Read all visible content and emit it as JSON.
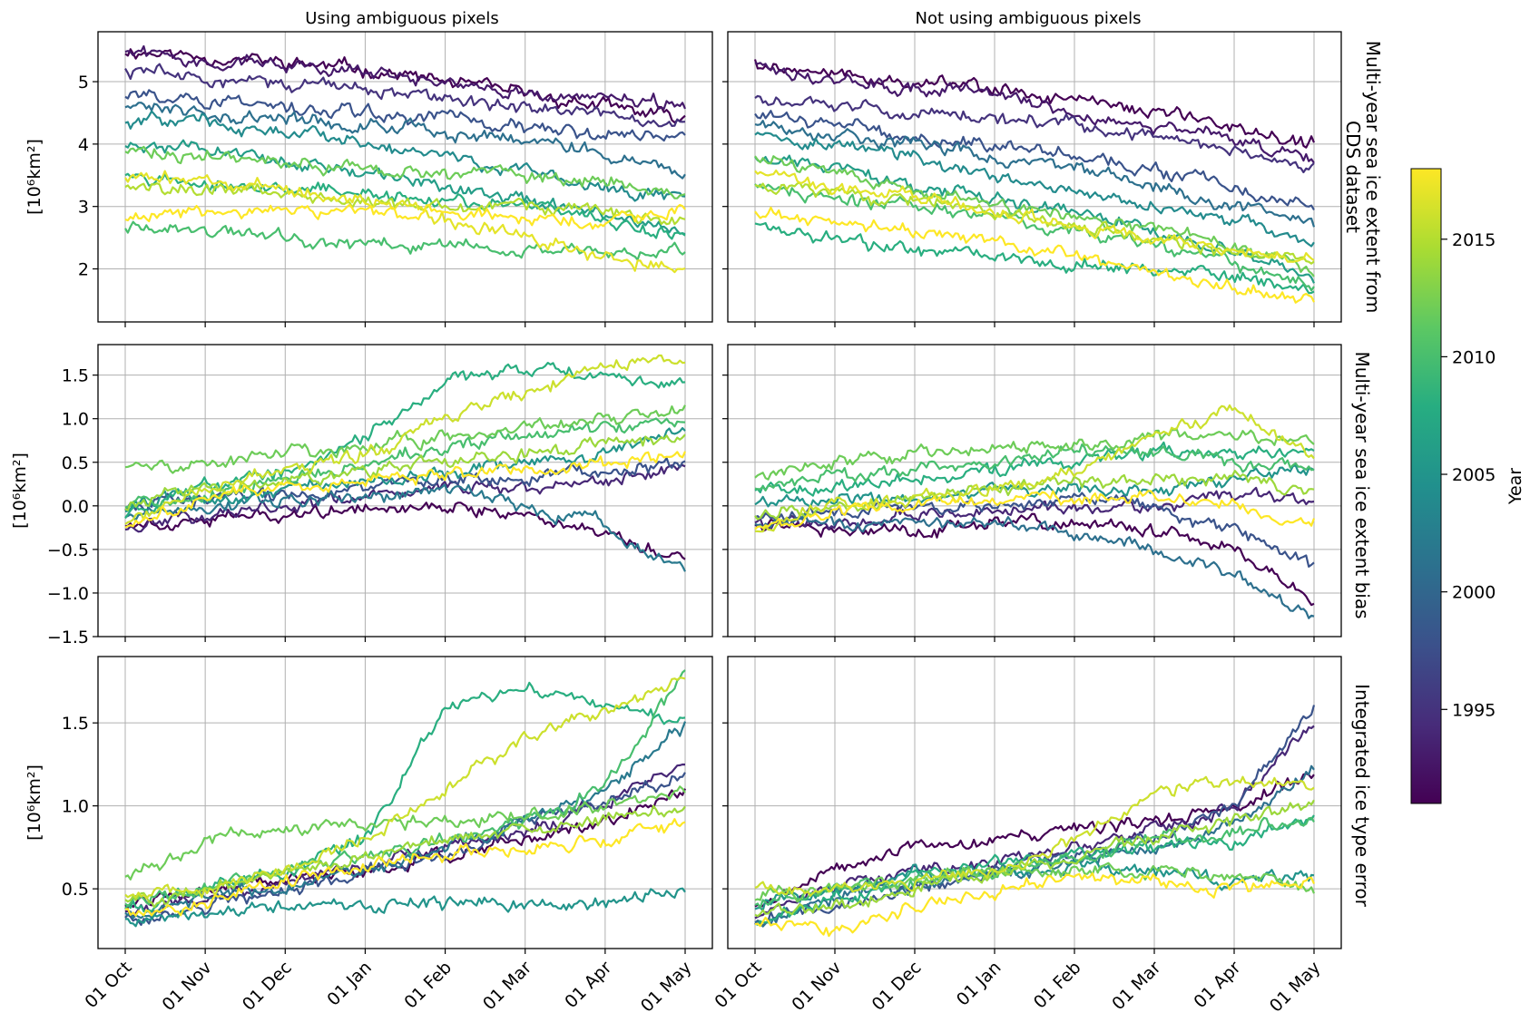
{
  "figure": {
    "column_titles": [
      "Using ambiguous pixels",
      "Not using ambiguous pixels"
    ],
    "row_titles": [
      "Multi-year sea ice extent from\nCDS dataset",
      "Multi-year sea ice extent bias",
      "Integrated ice type error"
    ],
    "ylabel": "[10⁶km²]",
    "colorbar": {
      "label": "Year",
      "range": [
        1991,
        2018
      ],
      "ticks": [
        "1995",
        "2000",
        "2005",
        "2010",
        "2015"
      ],
      "colormap": "viridis",
      "colors": [
        "#440154",
        "#472c7a",
        "#3b518b",
        "#2c718e",
        "#21908d",
        "#27ad81",
        "#5cc863",
        "#aadc32",
        "#fde725"
      ]
    },
    "x_tick_labels": [
      "01 Oct",
      "01 Nov",
      "01 Dec",
      "01 Jan",
      "01 Feb",
      "01 Mar",
      "01 Apr",
      "01 May"
    ],
    "grid": true
  },
  "chart_data": [
    {
      "type": "line",
      "title": "Using ambiguous pixels",
      "row": "Multi-year sea ice extent from CDS dataset",
      "x": [
        "01 Oct",
        "01 Nov",
        "01 Dec",
        "01 Jan",
        "01 Feb",
        "01 Mar",
        "01 Apr",
        "01 May"
      ],
      "ylim": [
        1.15,
        5.8
      ],
      "yticks": [
        2,
        3,
        4,
        5
      ],
      "ytick_labels": [
        "2",
        "3",
        "4",
        "5"
      ],
      "series_years": "1991-2018 (one line per year)",
      "series": [
        {
          "year": 1991,
          "values": [
            5.5,
            5.4,
            5.3,
            5.2,
            5.0,
            4.8,
            4.6,
            4.4
          ]
        },
        {
          "year": 1993,
          "values": [
            5.5,
            5.35,
            5.3,
            5.15,
            5.0,
            4.8,
            4.7,
            4.6
          ]
        },
        {
          "year": 1995,
          "values": [
            5.2,
            5.1,
            5.0,
            4.9,
            4.7,
            4.6,
            4.45,
            4.3
          ]
        },
        {
          "year": 1998,
          "values": [
            4.8,
            4.7,
            4.6,
            4.5,
            4.4,
            4.3,
            4.2,
            4.1
          ]
        },
        {
          "year": 2001,
          "values": [
            4.6,
            4.5,
            4.4,
            4.3,
            4.2,
            4.1,
            3.9,
            3.5
          ]
        },
        {
          "year": 2004,
          "values": [
            4.4,
            4.35,
            4.2,
            4.0,
            3.8,
            3.6,
            3.3,
            3.1
          ]
        },
        {
          "year": 2006,
          "values": [
            4.0,
            3.9,
            3.7,
            3.5,
            3.3,
            3.1,
            2.9,
            2.6
          ]
        },
        {
          "year": 2008,
          "values": [
            3.5,
            3.4,
            3.3,
            3.2,
            3.1,
            3.0,
            2.8,
            2.5
          ]
        },
        {
          "year": 2010,
          "values": [
            2.7,
            2.6,
            2.5,
            2.4,
            2.4,
            2.3,
            2.3,
            2.3
          ]
        },
        {
          "year": 2012,
          "values": [
            3.9,
            3.8,
            3.7,
            3.6,
            3.5,
            3.5,
            3.4,
            3.3
          ]
        },
        {
          "year": 2015,
          "values": [
            3.3,
            3.3,
            3.2,
            3.1,
            3.0,
            3.0,
            2.9,
            2.8
          ]
        },
        {
          "year": 2017,
          "values": [
            3.5,
            3.4,
            3.3,
            3.1,
            2.8,
            2.5,
            2.2,
            2.0
          ]
        },
        {
          "year": 2018,
          "values": [
            2.8,
            2.9,
            2.9,
            2.9,
            2.9,
            2.8,
            2.8,
            2.9
          ]
        }
      ]
    },
    {
      "type": "line",
      "title": "Not using ambiguous pixels",
      "row": "Multi-year sea ice extent from CDS dataset",
      "x": [
        "01 Oct",
        "01 Nov",
        "01 Dec",
        "01 Jan",
        "01 Feb",
        "01 Mar",
        "01 Apr",
        "01 May"
      ],
      "ylim": [
        1.15,
        5.8
      ],
      "yticks": [
        2,
        3,
        4,
        5
      ],
      "ytick_labels": [
        "2",
        "3",
        "4",
        "5"
      ],
      "series_years": "1991-2018 (one line per year)",
      "series": [
        {
          "year": 1991,
          "values": [
            5.3,
            5.1,
            5.0,
            4.9,
            4.7,
            4.5,
            4.3,
            4.0
          ]
        },
        {
          "year": 1993,
          "values": [
            5.3,
            5.0,
            4.9,
            4.8,
            4.5,
            4.3,
            4.1,
            3.7
          ]
        },
        {
          "year": 1995,
          "values": [
            4.7,
            4.6,
            4.5,
            4.4,
            4.3,
            4.1,
            3.9,
            3.6
          ]
        },
        {
          "year": 1998,
          "values": [
            4.5,
            4.3,
            4.1,
            4.0,
            3.8,
            3.6,
            3.3,
            3.0
          ]
        },
        {
          "year": 2001,
          "values": [
            4.3,
            4.2,
            4.0,
            3.8,
            3.6,
            3.3,
            3.0,
            2.7
          ]
        },
        {
          "year": 2004,
          "values": [
            4.1,
            4.0,
            3.8,
            3.5,
            3.2,
            3.0,
            2.8,
            2.4
          ]
        },
        {
          "year": 2006,
          "values": [
            3.8,
            3.6,
            3.3,
            3.1,
            2.9,
            2.6,
            2.3,
            1.8
          ]
        },
        {
          "year": 2008,
          "values": [
            2.7,
            2.5,
            2.3,
            2.2,
            2.1,
            2.0,
            1.9,
            1.6
          ]
        },
        {
          "year": 2010,
          "values": [
            3.3,
            3.1,
            3.0,
            2.8,
            2.6,
            2.4,
            2.1,
            1.7
          ]
        },
        {
          "year": 2012,
          "values": [
            3.8,
            3.5,
            3.2,
            3.0,
            2.8,
            2.6,
            2.4,
            2.0
          ]
        },
        {
          "year": 2015,
          "values": [
            3.3,
            3.2,
            3.1,
            2.9,
            2.7,
            2.5,
            2.3,
            2.1
          ]
        },
        {
          "year": 2017,
          "values": [
            3.5,
            3.3,
            3.1,
            2.9,
            2.7,
            2.5,
            2.3,
            2.1
          ]
        },
        {
          "year": 2018,
          "values": [
            2.9,
            2.7,
            2.6,
            2.4,
            2.2,
            1.9,
            1.7,
            1.5
          ]
        }
      ]
    },
    {
      "type": "line",
      "title": "Using ambiguous pixels",
      "row": "Multi-year sea ice extent bias",
      "x": [
        "01 Oct",
        "01 Nov",
        "01 Dec",
        "01 Jan",
        "01 Feb",
        "01 Mar",
        "01 Apr",
        "01 May"
      ],
      "ylim": [
        -1.5,
        1.85
      ],
      "yticks": [
        -1.5,
        -1.0,
        -0.5,
        0.0,
        0.5,
        1.0,
        1.5
      ],
      "ytick_labels": [
        "−1.5",
        "−1.0",
        "−0.5",
        "0.0",
        "0.5",
        "1.0",
        "1.5"
      ],
      "series_years": "1991-2018 (one line per year)",
      "series": [
        {
          "year": 1991,
          "values": [
            -0.2,
            -0.15,
            -0.1,
            0.0,
            0.0,
            -0.1,
            -0.3,
            -0.6
          ]
        },
        {
          "year": 1994,
          "values": [
            -0.2,
            -0.1,
            0.0,
            0.1,
            0.2,
            0.2,
            0.3,
            0.4
          ]
        },
        {
          "year": 1998,
          "values": [
            0.0,
            0.1,
            0.1,
            0.2,
            0.3,
            0.3,
            0.4,
            0.5
          ]
        },
        {
          "year": 2002,
          "values": [
            -0.1,
            0.0,
            0.1,
            0.1,
            0.2,
            0.0,
            -0.2,
            -0.8
          ]
        },
        {
          "year": 2005,
          "values": [
            0.0,
            0.1,
            0.2,
            0.3,
            0.4,
            0.5,
            0.6,
            0.9
          ]
        },
        {
          "year": 2008,
          "values": [
            -0.1,
            0.2,
            0.4,
            0.8,
            1.4,
            1.6,
            1.5,
            1.4
          ]
        },
        {
          "year": 2010,
          "values": [
            0.0,
            0.1,
            0.3,
            0.5,
            0.7,
            0.8,
            0.9,
            1.0
          ]
        },
        {
          "year": 2012,
          "values": [
            0.5,
            0.5,
            0.6,
            0.7,
            0.8,
            0.9,
            1.0,
            1.1
          ]
        },
        {
          "year": 2014,
          "values": [
            0.0,
            0.2,
            0.3,
            0.4,
            0.5,
            0.6,
            0.7,
            0.8
          ]
        },
        {
          "year": 2016,
          "values": [
            -0.2,
            0.2,
            0.4,
            0.6,
            1.0,
            1.3,
            1.6,
            1.7
          ]
        },
        {
          "year": 2018,
          "values": [
            -0.2,
            0.1,
            0.2,
            0.3,
            0.4,
            0.4,
            0.5,
            0.6
          ]
        }
      ]
    },
    {
      "type": "line",
      "title": "Not using ambiguous pixels",
      "row": "Multi-year sea ice extent bias",
      "x": [
        "01 Oct",
        "01 Nov",
        "01 Dec",
        "01 Jan",
        "01 Feb",
        "01 Mar",
        "01 Apr",
        "01 May"
      ],
      "ylim": [
        -1.5,
        1.85
      ],
      "yticks": [
        -1.5,
        -1.0,
        -0.5,
        0.0,
        0.5,
        1.0,
        1.5
      ],
      "ytick_labels": [
        "−1.5",
        "−1.0",
        "−0.5",
        "0.0",
        "0.5",
        "1.0",
        "1.5"
      ],
      "series_years": "1991-2018 (one line per year)",
      "series": [
        {
          "year": 1991,
          "values": [
            -0.2,
            -0.3,
            -0.3,
            -0.2,
            -0.2,
            -0.3,
            -0.5,
            -1.1
          ]
        },
        {
          "year": 1994,
          "values": [
            -0.2,
            -0.2,
            -0.1,
            0.0,
            0.0,
            0.0,
            0.1,
            0.1
          ]
        },
        {
          "year": 1998,
          "values": [
            -0.1,
            -0.1,
            0.0,
            0.0,
            0.1,
            0.0,
            -0.3,
            -0.7
          ]
        },
        {
          "year": 2001,
          "values": [
            -0.2,
            -0.2,
            -0.2,
            -0.2,
            -0.3,
            -0.5,
            -0.8,
            -1.3
          ]
        },
        {
          "year": 2005,
          "values": [
            0.0,
            0.1,
            0.1,
            0.2,
            0.2,
            0.2,
            0.3,
            0.4
          ]
        },
        {
          "year": 2008,
          "values": [
            0.2,
            0.2,
            0.3,
            0.4,
            0.5,
            0.6,
            0.6,
            0.6
          ]
        },
        {
          "year": 2010,
          "values": [
            0.2,
            0.3,
            0.4,
            0.5,
            0.6,
            0.6,
            0.5,
            0.4
          ]
        },
        {
          "year": 2012,
          "values": [
            0.3,
            0.5,
            0.6,
            0.7,
            0.7,
            0.8,
            0.8,
            0.7
          ]
        },
        {
          "year": 2014,
          "values": [
            -0.1,
            0.0,
            0.1,
            0.2,
            0.3,
            0.3,
            0.3,
            0.2
          ]
        },
        {
          "year": 2016,
          "values": [
            -0.3,
            0.0,
            0.1,
            0.2,
            0.4,
            0.8,
            1.1,
            0.6
          ]
        },
        {
          "year": 2018,
          "values": [
            -0.3,
            -0.1,
            0.0,
            0.1,
            0.1,
            0.1,
            0.0,
            -0.2
          ]
        }
      ]
    },
    {
      "type": "line",
      "title": "Using ambiguous pixels",
      "row": "Integrated ice type error",
      "x": [
        "01 Oct",
        "01 Nov",
        "01 Dec",
        "01 Jan",
        "01 Feb",
        "01 Mar",
        "01 Apr",
        "01 May"
      ],
      "ylim": [
        0.14,
        1.9
      ],
      "yticks": [
        0.5,
        1.0,
        1.5
      ],
      "ytick_labels": [
        "0.5",
        "1.0",
        "1.5"
      ],
      "series_years": "1991-2018 (one line per year)",
      "series": [
        {
          "year": 1991,
          "values": [
            0.4,
            0.5,
            0.55,
            0.6,
            0.7,
            0.8,
            0.9,
            1.1
          ]
        },
        {
          "year": 1994,
          "values": [
            0.35,
            0.45,
            0.55,
            0.65,
            0.75,
            0.85,
            1.0,
            1.3
          ]
        },
        {
          "year": 1998,
          "values": [
            0.3,
            0.4,
            0.5,
            0.6,
            0.7,
            0.9,
            1.0,
            1.2
          ]
        },
        {
          "year": 2002,
          "values": [
            0.35,
            0.45,
            0.5,
            0.6,
            0.75,
            0.9,
            1.1,
            1.5
          ]
        },
        {
          "year": 2005,
          "values": [
            0.3,
            0.35,
            0.4,
            0.4,
            0.4,
            0.4,
            0.4,
            0.5
          ]
        },
        {
          "year": 2008,
          "values": [
            0.35,
            0.5,
            0.6,
            0.8,
            1.6,
            1.7,
            1.6,
            1.5
          ]
        },
        {
          "year": 2010,
          "values": [
            0.4,
            0.5,
            0.6,
            0.7,
            0.8,
            0.9,
            1.1,
            1.8
          ]
        },
        {
          "year": 2012,
          "values": [
            0.55,
            0.8,
            0.85,
            0.9,
            0.9,
            0.95,
            1.0,
            1.1
          ]
        },
        {
          "year": 2014,
          "values": [
            0.4,
            0.5,
            0.6,
            0.7,
            0.8,
            0.85,
            0.9,
            1.0
          ]
        },
        {
          "year": 2016,
          "values": [
            0.45,
            0.5,
            0.6,
            0.8,
            1.1,
            1.4,
            1.6,
            1.75
          ]
        },
        {
          "year": 2018,
          "values": [
            0.35,
            0.4,
            0.55,
            0.65,
            0.7,
            0.75,
            0.8,
            0.9
          ]
        }
      ]
    },
    {
      "type": "line",
      "title": "Not using ambiguous pixels",
      "row": "Integrated ice type error",
      "x": [
        "01 Oct",
        "01 Nov",
        "01 Dec",
        "01 Jan",
        "01 Feb",
        "01 Mar",
        "01 Apr",
        "01 May"
      ],
      "ylim": [
        0.14,
        1.9
      ],
      "yticks": [
        0.5,
        1.0,
        1.5
      ],
      "ytick_labels": [
        "0.5",
        "1.0",
        "1.5"
      ],
      "series_years": "1991-2018 (one line per year)",
      "series": [
        {
          "year": 1991,
          "values": [
            0.4,
            0.6,
            0.75,
            0.8,
            0.85,
            0.9,
            1.0,
            1.2
          ]
        },
        {
          "year": 1994,
          "values": [
            0.35,
            0.5,
            0.6,
            0.65,
            0.75,
            0.85,
            1.0,
            1.5
          ]
        },
        {
          "year": 1998,
          "values": [
            0.3,
            0.4,
            0.5,
            0.6,
            0.7,
            0.8,
            1.0,
            1.6
          ]
        },
        {
          "year": 2001,
          "values": [
            0.3,
            0.45,
            0.5,
            0.6,
            0.65,
            0.75,
            0.9,
            1.2
          ]
        },
        {
          "year": 2005,
          "values": [
            0.4,
            0.5,
            0.6,
            0.6,
            0.65,
            0.6,
            0.55,
            0.6
          ]
        },
        {
          "year": 2008,
          "values": [
            0.3,
            0.45,
            0.55,
            0.65,
            0.7,
            0.75,
            0.8,
            0.9
          ]
        },
        {
          "year": 2010,
          "values": [
            0.4,
            0.5,
            0.55,
            0.6,
            0.7,
            0.8,
            0.85,
            0.9
          ]
        },
        {
          "year": 2012,
          "values": [
            0.45,
            0.5,
            0.55,
            0.6,
            0.6,
            0.6,
            0.6,
            0.5
          ]
        },
        {
          "year": 2014,
          "values": [
            0.35,
            0.4,
            0.5,
            0.6,
            0.7,
            0.8,
            0.9,
            1.0
          ]
        },
        {
          "year": 2016,
          "values": [
            0.5,
            0.5,
            0.55,
            0.6,
            0.8,
            1.1,
            1.15,
            1.1
          ]
        },
        {
          "year": 2018,
          "values": [
            0.3,
            0.25,
            0.4,
            0.5,
            0.55,
            0.55,
            0.5,
            0.55
          ]
        }
      ]
    }
  ]
}
